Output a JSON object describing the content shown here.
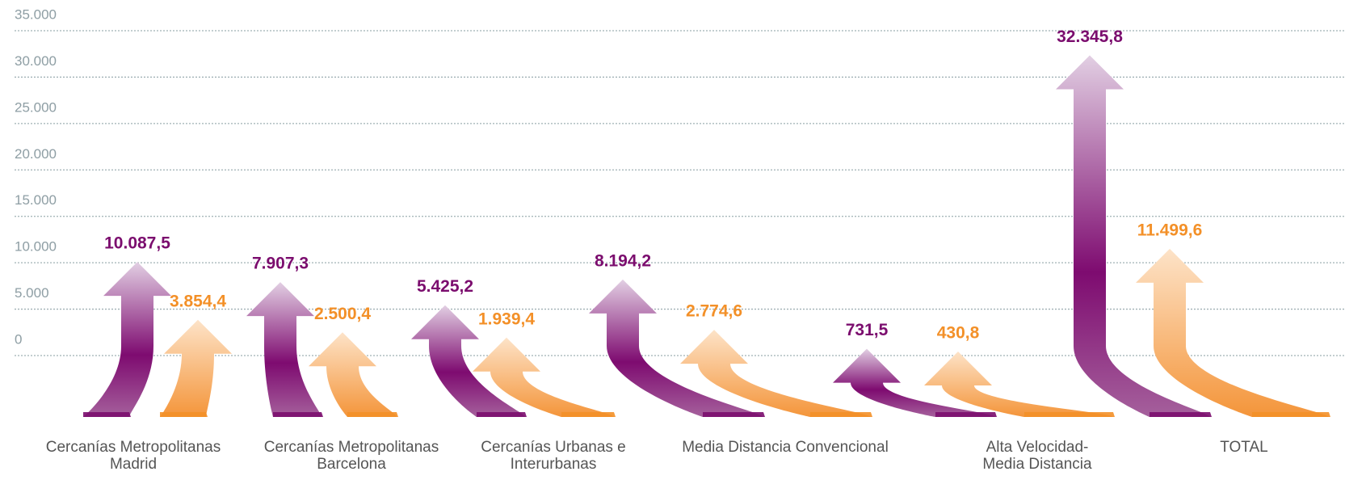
{
  "chart_data": {
    "type": "arrow-bar",
    "categories": [
      "Cercanías Metropolitanas Madrid",
      "Cercanías Metropolitanas Barcelona",
      "Cercanías Urbanas e Interurbanas",
      "Media Distancia Convencional",
      "Alta Velocidad-Media Distancia",
      "TOTAL"
    ],
    "series": [
      {
        "color": "#7b0d6e",
        "values": [
          10087.5,
          7907.3,
          5425.2,
          8194.2,
          731.5,
          32345.8
        ],
        "value_labels": [
          "10.087,5",
          "7.907,3",
          "5.425,2",
          "8.194,2",
          "731,5",
          "32.345,8"
        ]
      },
      {
        "color": "#f39028",
        "values": [
          3854.4,
          2500.4,
          1939.4,
          2774.6,
          430.8,
          11499.6
        ],
        "value_labels": [
          "3.854,4",
          "2.500,4",
          "1.939,4",
          "2.774,6",
          "430,8",
          "11.499,6"
        ]
      }
    ],
    "ylim": [
      0,
      35000
    ],
    "yticks": [
      0,
      {
        "value": 5000,
        "label": "5.000"
      },
      {
        "value": 10000,
        "label": "10.000"
      },
      {
        "value": 15000,
        "label": "15.000"
      },
      {
        "value": 20000,
        "label": "20.000"
      },
      {
        "value": 25000,
        "label": "25.000"
      },
      {
        "value": 30000,
        "label": "30.000"
      },
      {
        "value": 35000,
        "label": "35.000"
      }
    ],
    "grid": true
  }
}
